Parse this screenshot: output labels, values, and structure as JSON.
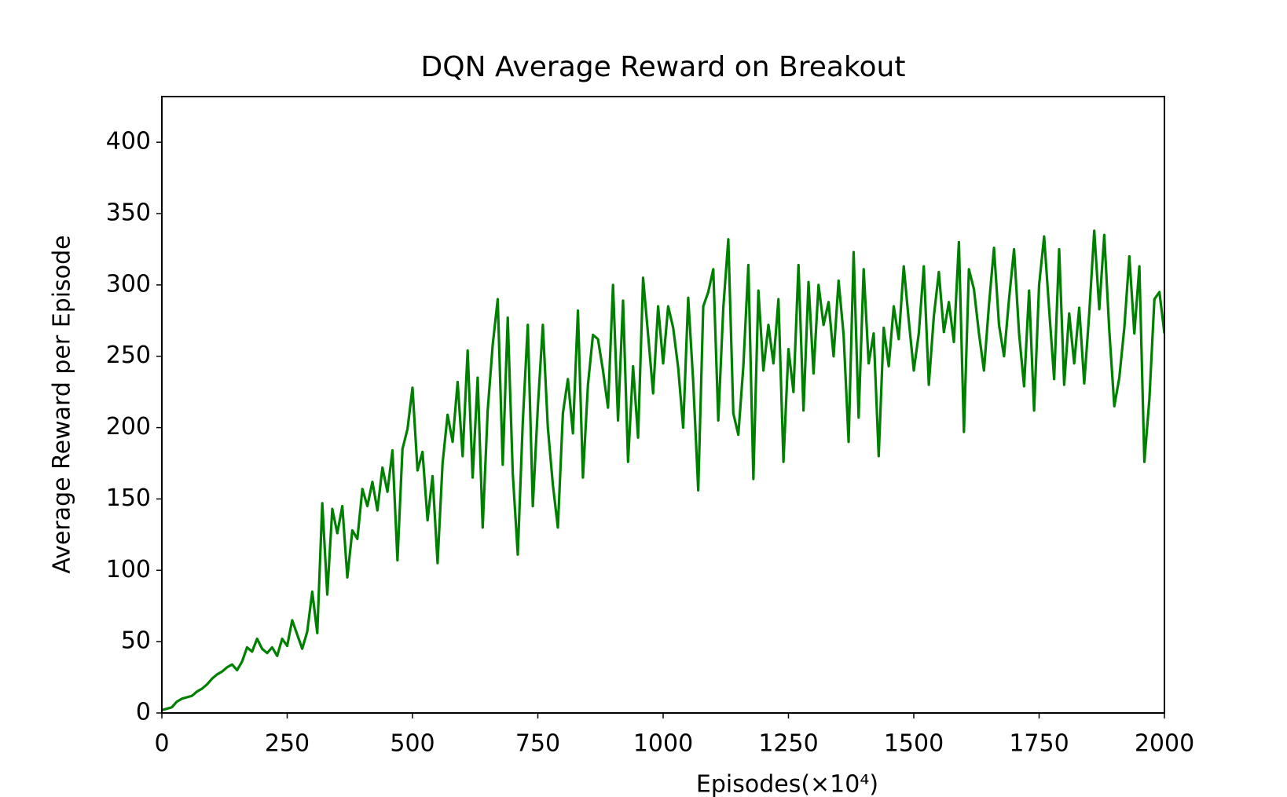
{
  "chart_data": {
    "type": "line",
    "title": "DQN Average Reward on Breakout",
    "xlabel": "Episodes(×10⁴)",
    "ylabel": "Average Reward per Episode",
    "xlim": [
      0,
      2000
    ],
    "xticks": [
      0,
      250,
      500,
      750,
      1000,
      1250,
      1500,
      1750,
      2000
    ],
    "ylim": [
      0,
      432
    ],
    "yticks": [
      0,
      50,
      100,
      150,
      200,
      250,
      300,
      350,
      400
    ],
    "grid": false,
    "x": [
      0,
      10,
      20,
      30,
      40,
      50,
      60,
      70,
      80,
      90,
      100,
      110,
      120,
      130,
      140,
      150,
      160,
      170,
      180,
      190,
      200,
      210,
      220,
      230,
      240,
      250,
      260,
      270,
      280,
      290,
      300,
      310,
      320,
      330,
      340,
      350,
      360,
      370,
      380,
      390,
      400,
      410,
      420,
      430,
      440,
      450,
      460,
      470,
      480,
      490,
      500,
      510,
      520,
      530,
      540,
      550,
      560,
      570,
      580,
      590,
      600,
      610,
      620,
      630,
      640,
      650,
      660,
      670,
      680,
      690,
      700,
      710,
      720,
      730,
      740,
      750,
      760,
      770,
      780,
      790,
      800,
      810,
      820,
      830,
      840,
      850,
      860,
      870,
      880,
      890,
      900,
      910,
      920,
      930,
      940,
      950,
      960,
      970,
      980,
      990,
      1000,
      1010,
      1020,
      1030,
      1040,
      1050,
      1060,
      1070,
      1080,
      1090,
      1100,
      1110,
      1120,
      1130,
      1140,
      1150,
      1160,
      1170,
      1180,
      1190,
      1200,
      1210,
      1220,
      1230,
      1240,
      1250,
      1260,
      1270,
      1280,
      1290,
      1300,
      1310,
      1320,
      1330,
      1340,
      1350,
      1360,
      1370,
      1380,
      1390,
      1400,
      1410,
      1420,
      1430,
      1440,
      1450,
      1460,
      1470,
      1480,
      1490,
      1500,
      1510,
      1520,
      1530,
      1540,
      1550,
      1560,
      1570,
      1580,
      1590,
      1600,
      1610,
      1620,
      1630,
      1640,
      1650,
      1660,
      1670,
      1680,
      1690,
      1700,
      1710,
      1720,
      1730,
      1740,
      1750,
      1760,
      1770,
      1780,
      1790,
      1800,
      1810,
      1820,
      1830,
      1840,
      1850,
      1860,
      1870,
      1880,
      1890,
      1900,
      1910,
      1920,
      1930,
      1940,
      1950,
      1960,
      1970,
      1980,
      1990,
      2000
    ],
    "series": [
      {
        "color": "#008000",
        "values": [
          2,
          3,
          4,
          8,
          10,
          11,
          12,
          15,
          17,
          20,
          24,
          27,
          29,
          32,
          34,
          30,
          36,
          46,
          43,
          52,
          45,
          42,
          46,
          40,
          52,
          47,
          65,
          55,
          45,
          57,
          85,
          56,
          147,
          83,
          143,
          126,
          145,
          95,
          128,
          122,
          157,
          145,
          162,
          142,
          172,
          155,
          184,
          107,
          185,
          199,
          228,
          170,
          183,
          135,
          166,
          105,
          175,
          209,
          190,
          232,
          180,
          254,
          165,
          235,
          130,
          212,
          258,
          290,
          174,
          277,
          168,
          111,
          204,
          272,
          145,
          214,
          272,
          200,
          160,
          130,
          210,
          234,
          196,
          282,
          165,
          230,
          265,
          262,
          240,
          214,
          300,
          205,
          289,
          176,
          243,
          193,
          305,
          265,
          224,
          285,
          245,
          285,
          270,
          242,
          200,
          291,
          232,
          156,
          285,
          295,
          311,
          205,
          284,
          332,
          210,
          195,
          243,
          314,
          164,
          296,
          240,
          272,
          245,
          290,
          176,
          255,
          225,
          314,
          212,
          302,
          238,
          300,
          272,
          288,
          250,
          303,
          265,
          190,
          323,
          207,
          311,
          245,
          266,
          180,
          270,
          243,
          285,
          262,
          313,
          275,
          240,
          266,
          313,
          230,
          278,
          309,
          267,
          288,
          260,
          330,
          197,
          311,
          297,
          266,
          240,
          286,
          326,
          272,
          250,
          290,
          325,
          266,
          229,
          296,
          212,
          300,
          334,
          283,
          234,
          325,
          230,
          280,
          245,
          284,
          231,
          280,
          338,
          283,
          335,
          268,
          215,
          235,
          270,
          320,
          266,
          313,
          176,
          220,
          290,
          295,
          266
        ]
      }
    ]
  }
}
